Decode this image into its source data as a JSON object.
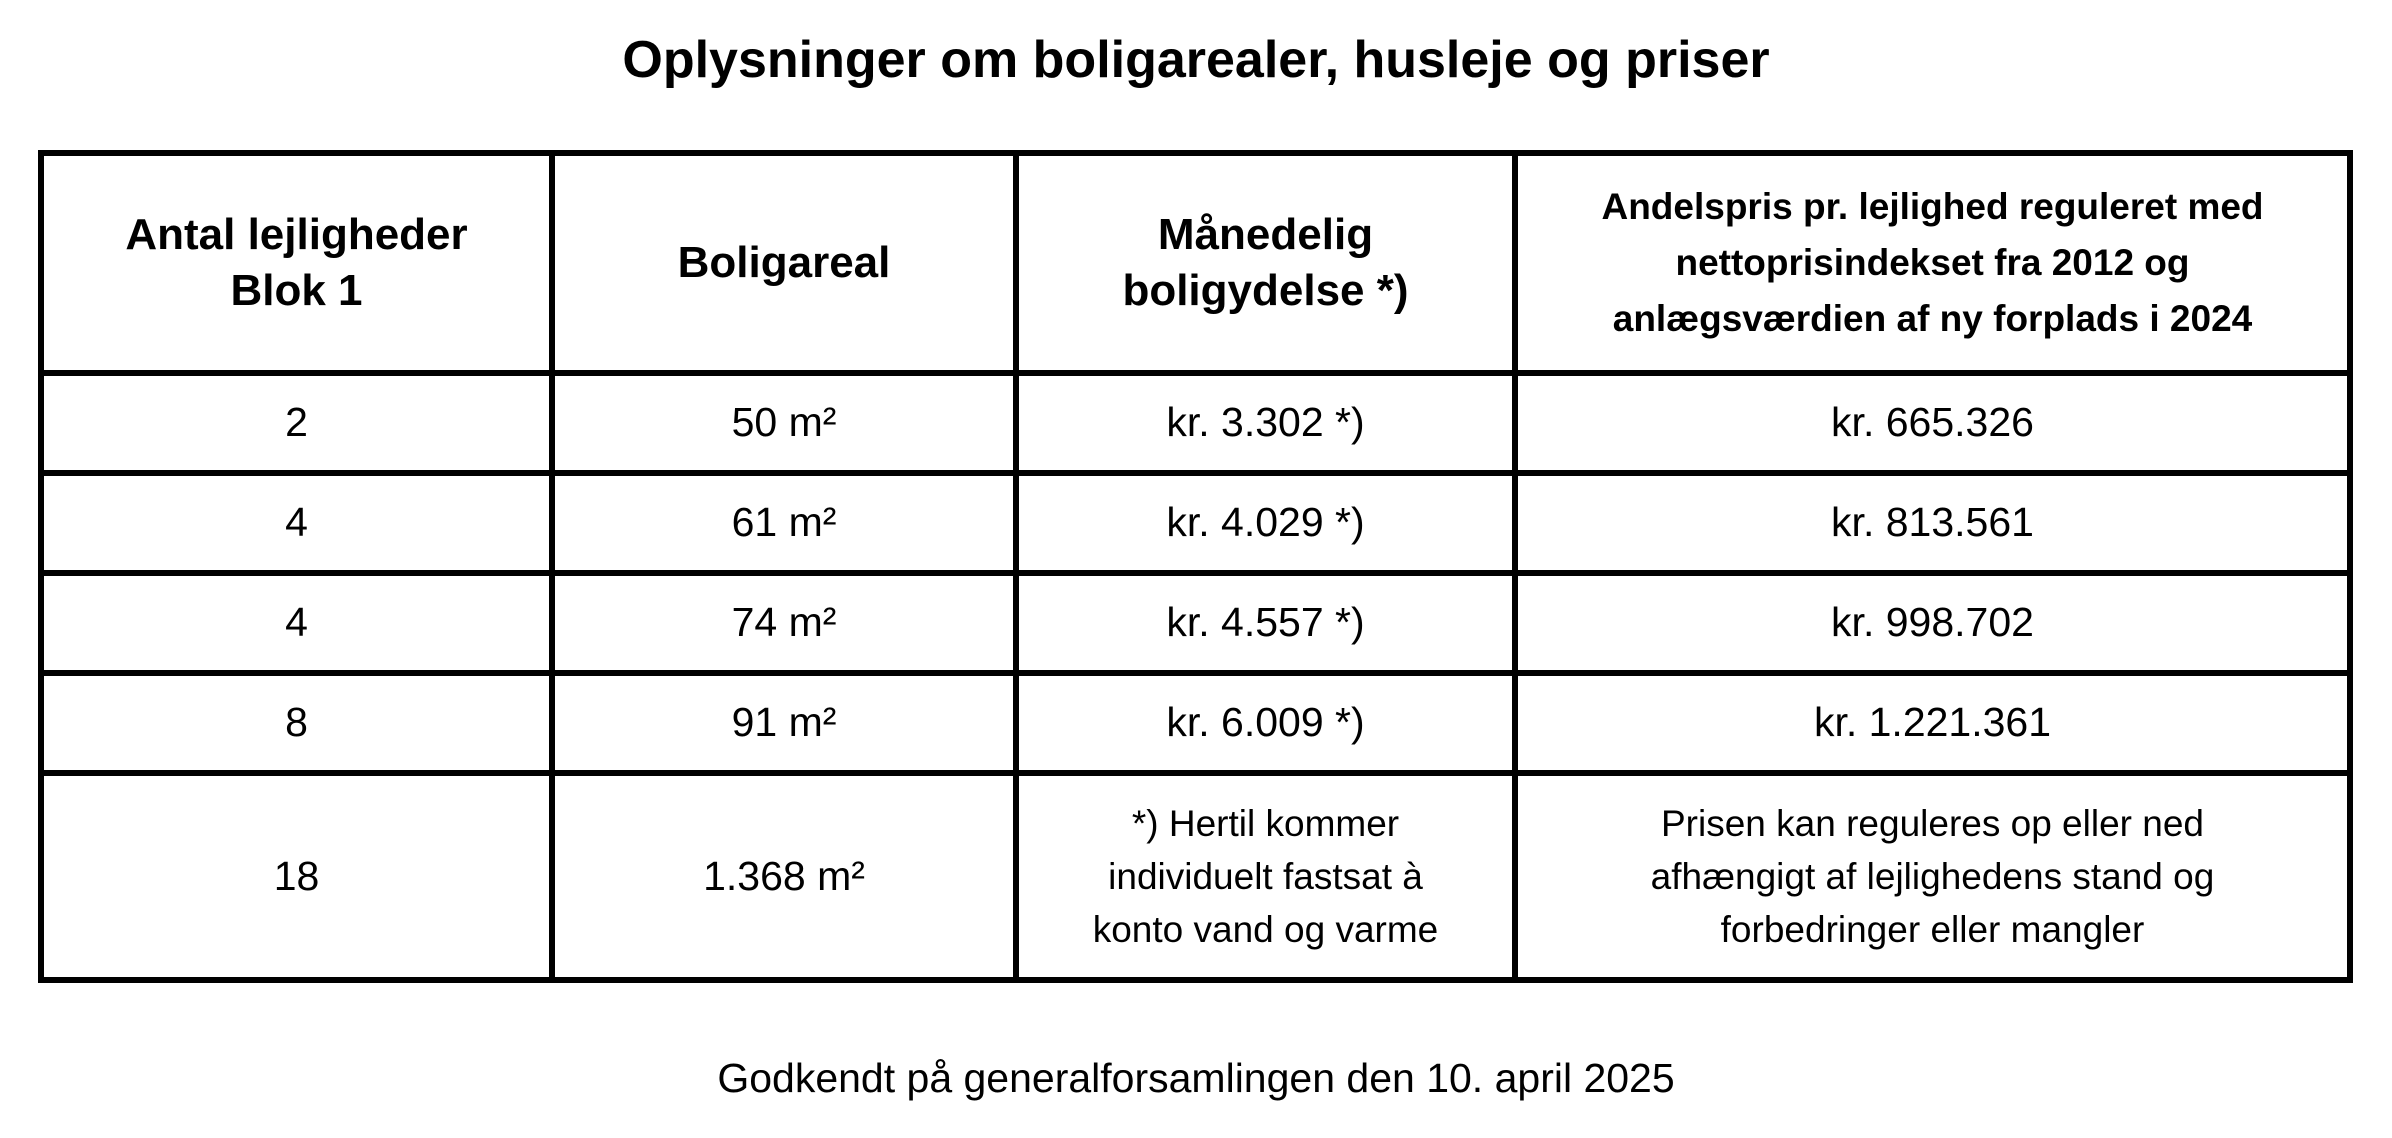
{
  "header": {
    "title": "Oplysninger om boligarealer, husleje og priser"
  },
  "table": {
    "columns": [
      [
        "Antal lejligheder",
        "Blok 1"
      ],
      [
        "Boligareal"
      ],
      [
        "Månedelig",
        "boligydelse *)"
      ],
      [
        "Andelspris pr. lejlighed reguleret med",
        "nettoprisindekset fra 2012 og",
        "anlægsværdien af ny forplads i 2024"
      ]
    ],
    "rows": [
      [
        "2",
        "50 m²",
        "kr. 3.302 *)",
        "kr. 665.326"
      ],
      [
        "4",
        "61 m²",
        "kr. 4.029 *)",
        "kr. 813.561"
      ],
      [
        "4",
        "74 m²",
        "kr. 4.557 *)",
        "kr. 998.702"
      ],
      [
        "8",
        "91 m²",
        "kr. 6.009 *)",
        "kr. 1.221.361"
      ]
    ],
    "total_row": [
      [
        "18"
      ],
      [
        "1.368 m²"
      ],
      [
        "*) Hertil kommer",
        "individuelt fastsat à",
        "konto vand og varme"
      ],
      [
        "Prisen kan reguleres op eller ned",
        "afhængigt af lejlighedens stand og",
        "forbedringer eller mangler"
      ]
    ]
  },
  "footer": {
    "text": "Godkendt på generalforsamlingen den 10. april 2025"
  }
}
